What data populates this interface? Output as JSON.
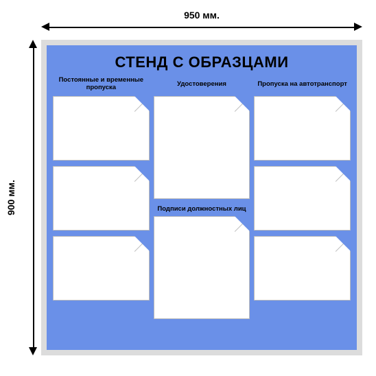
{
  "dimensions": {
    "width_label": "950 мм.",
    "height_label": "900 мм."
  },
  "board": {
    "title": "СТЕНД С ОБРАЗЦАМИ",
    "background_color": "#6a90e8",
    "frame_color": "#dcdcdc",
    "pocket_bg": "#ffffff",
    "pocket_border": "#bbbbbb",
    "title_fontsize": 22,
    "label_fontsize": 9.5,
    "columns": [
      {
        "label": "Постоянные и временные пропуска",
        "pockets": [
          "landscape",
          "landscape",
          "landscape"
        ]
      },
      {
        "label": "Удостоверения",
        "pockets": [
          "portrait"
        ],
        "second_label": "Подписи должностных лиц",
        "second_pockets": [
          "portrait"
        ]
      },
      {
        "label": "Пропуска на автотранспорт",
        "pockets": [
          "landscape",
          "landscape",
          "landscape"
        ]
      }
    ]
  }
}
